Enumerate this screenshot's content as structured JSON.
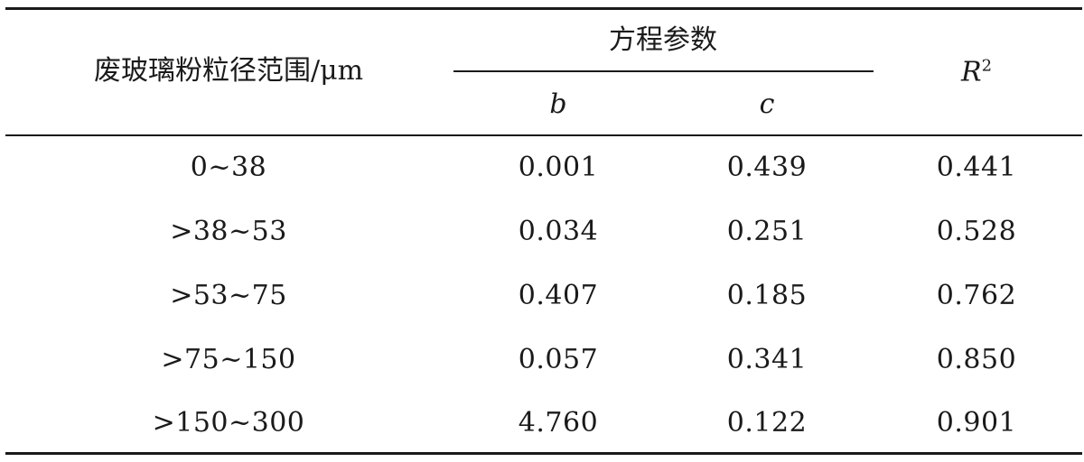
{
  "table": {
    "header": {
      "col_range": "废玻璃粉粒径范围/μm",
      "group_label": "方程参数",
      "col_b": "b",
      "col_c": "c",
      "col_r2_base": "R",
      "col_r2_exp": "2"
    },
    "rows": [
      {
        "range": "0~38",
        "b": "0.001",
        "c": "0.439",
        "r2": "0.441"
      },
      {
        "range": ">38~53",
        "b": "0.034",
        "c": "0.251",
        "r2": "0.528"
      },
      {
        "range": ">53~75",
        "b": "0.407",
        "c": "0.185",
        "r2": "0.762"
      },
      {
        "range": ">75~150",
        "b": "0.057",
        "c": "0.341",
        "r2": "0.850"
      },
      {
        "range": ">150~300",
        "b": "4.760",
        "c": "0.122",
        "r2": "0.901"
      }
    ]
  }
}
